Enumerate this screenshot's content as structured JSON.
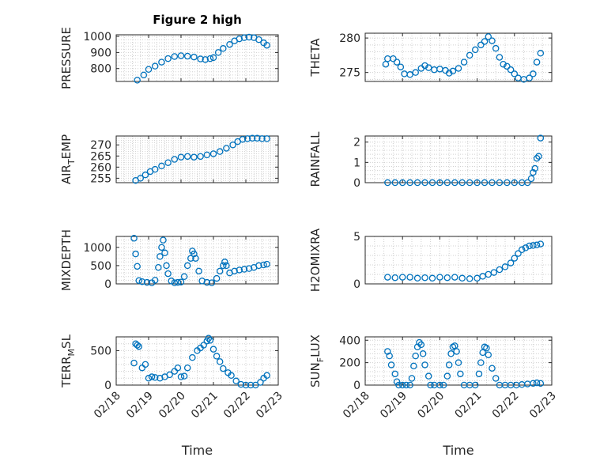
{
  "figure": {
    "title": "Figure 2 high",
    "marker_color": "#0072bd",
    "grid_color": "#d0d0d0"
  },
  "chart_data": [
    {
      "id": "pressure",
      "type": "scatter",
      "title": "Figure 2 high",
      "ylabel": "PRESSURE",
      "ylabel_sub": null,
      "xlim": [
        0,
        5
      ],
      "ylim": [
        720,
        1010
      ],
      "yticks": [
        800,
        900,
        1000
      ],
      "grid": true,
      "minor_grid": true,
      "show_x_ticklabels": false,
      "xlabel": "",
      "xticks": [],
      "xticklabels": [],
      "points": [
        [
          0.65,
          728
        ],
        [
          0.85,
          760
        ],
        [
          1,
          795
        ],
        [
          1.2,
          815
        ],
        [
          1.4,
          840
        ],
        [
          1.6,
          862
        ],
        [
          1.8,
          875
        ],
        [
          2,
          880
        ],
        [
          2.2,
          877
        ],
        [
          2.4,
          872
        ],
        [
          2.6,
          860
        ],
        [
          2.75,
          856
        ],
        [
          2.9,
          862
        ],
        [
          3,
          868
        ],
        [
          3.15,
          900
        ],
        [
          3.3,
          925
        ],
        [
          3.5,
          950
        ],
        [
          3.65,
          972
        ],
        [
          3.8,
          985
        ],
        [
          3.95,
          992
        ],
        [
          4.1,
          995
        ],
        [
          4.25,
          992
        ],
        [
          4.4,
          980
        ],
        [
          4.55,
          960
        ],
        [
          4.65,
          945
        ]
      ]
    },
    {
      "id": "theta",
      "type": "scatter",
      "ylabel": "THETA",
      "ylabel_sub": null,
      "xlim": [
        0,
        5
      ],
      "ylim": [
        273.7,
        280.7
      ],
      "yticks": [
        275,
        280
      ],
      "grid": true,
      "minor_grid": true,
      "show_x_ticklabels": false,
      "xlabel": "",
      "xticks": [],
      "xticklabels": [],
      "points": [
        [
          0.55,
          276.2
        ],
        [
          0.6,
          277
        ],
        [
          0.75,
          277
        ],
        [
          0.85,
          276.5
        ],
        [
          0.95,
          275.8
        ],
        [
          1.05,
          274.8
        ],
        [
          1.2,
          274.7
        ],
        [
          1.35,
          275
        ],
        [
          1.5,
          275.6
        ],
        [
          1.6,
          276
        ],
        [
          1.7,
          275.7
        ],
        [
          1.85,
          275.4
        ],
        [
          2,
          275.5
        ],
        [
          2.15,
          275.3
        ],
        [
          2.25,
          274.9
        ],
        [
          2.35,
          275.2
        ],
        [
          2.5,
          275.6
        ],
        [
          2.65,
          276.5
        ],
        [
          2.8,
          277.5
        ],
        [
          2.95,
          278.3
        ],
        [
          3.1,
          279
        ],
        [
          3.2,
          279.5
        ],
        [
          3.3,
          280.2
        ],
        [
          3.4,
          279.6
        ],
        [
          3.5,
          278.5
        ],
        [
          3.6,
          277.2
        ],
        [
          3.7,
          276.2
        ],
        [
          3.8,
          275.9
        ],
        [
          3.9,
          275.4
        ],
        [
          4,
          274.8
        ],
        [
          4.1,
          274.2
        ],
        [
          4.25,
          274
        ],
        [
          4.4,
          274.2
        ],
        [
          4.5,
          274.8
        ],
        [
          4.6,
          276.5
        ],
        [
          4.7,
          277.8
        ]
      ]
    },
    {
      "id": "air_temp",
      "type": "scatter",
      "ylabel": "AIR",
      "ylabel_sub": "T",
      "ylabel_tail": "EMP",
      "xlim": [
        0,
        5
      ],
      "ylim": [
        253,
        274
      ],
      "yticks": [
        255,
        260,
        265,
        270
      ],
      "grid": true,
      "minor_grid": true,
      "show_x_ticklabels": false,
      "xlabel": "",
      "xticks": [],
      "xticklabels": [],
      "points": [
        [
          0.6,
          254
        ],
        [
          0.75,
          255
        ],
        [
          0.9,
          256.5
        ],
        [
          1.05,
          258
        ],
        [
          1.2,
          259
        ],
        [
          1.4,
          260.5
        ],
        [
          1.6,
          262
        ],
        [
          1.8,
          263.5
        ],
        [
          2,
          264.5
        ],
        [
          2.2,
          264.8
        ],
        [
          2.4,
          264.5
        ],
        [
          2.6,
          264.8
        ],
        [
          2.8,
          265.5
        ],
        [
          3,
          266
        ],
        [
          3.2,
          267
        ],
        [
          3.4,
          268.5
        ],
        [
          3.6,
          270
        ],
        [
          3.75,
          271.5
        ],
        [
          3.9,
          272.5
        ],
        [
          4.05,
          272.8
        ],
        [
          4.2,
          273
        ],
        [
          4.35,
          273
        ],
        [
          4.5,
          272.8
        ],
        [
          4.65,
          272.8
        ]
      ]
    },
    {
      "id": "rainfall",
      "type": "scatter",
      "ylabel": "RAINFALL",
      "ylabel_sub": null,
      "xlim": [
        0,
        5
      ],
      "ylim": [
        0,
        2.3
      ],
      "yticks": [
        0,
        1,
        2
      ],
      "grid": true,
      "minor_grid": true,
      "show_x_ticklabels": false,
      "xlabel": "",
      "xticks": [],
      "xticklabels": [],
      "points": [
        [
          0.6,
          0
        ],
        [
          0.8,
          0
        ],
        [
          1,
          0
        ],
        [
          1.2,
          0
        ],
        [
          1.4,
          0
        ],
        [
          1.6,
          0
        ],
        [
          1.8,
          0
        ],
        [
          2,
          0
        ],
        [
          2.2,
          0
        ],
        [
          2.4,
          0
        ],
        [
          2.6,
          0
        ],
        [
          2.8,
          0
        ],
        [
          3,
          0
        ],
        [
          3.2,
          0
        ],
        [
          3.4,
          0
        ],
        [
          3.6,
          0
        ],
        [
          3.8,
          0
        ],
        [
          4,
          0
        ],
        [
          4.2,
          0
        ],
        [
          4.35,
          0
        ],
        [
          4.45,
          0.2
        ],
        [
          4.5,
          0.5
        ],
        [
          4.55,
          0.7
        ],
        [
          4.6,
          1.2
        ],
        [
          4.65,
          1.3
        ],
        [
          4.7,
          2.2
        ]
      ]
    },
    {
      "id": "mixdepth",
      "type": "scatter",
      "ylabel": "MIXDEPTH",
      "ylabel_sub": null,
      "xlim": [
        0,
        5
      ],
      "ylim": [
        0,
        1300
      ],
      "yticks": [
        0,
        500,
        1000
      ],
      "grid": true,
      "minor_grid": true,
      "show_x_ticklabels": false,
      "xlabel": "",
      "xticks": [],
      "xticklabels": [],
      "points": [
        [
          0.55,
          1250
        ],
        [
          0.6,
          820
        ],
        [
          0.65,
          480
        ],
        [
          0.7,
          90
        ],
        [
          0.8,
          60
        ],
        [
          0.95,
          40
        ],
        [
          1.1,
          30
        ],
        [
          1.2,
          100
        ],
        [
          1.3,
          450
        ],
        [
          1.35,
          750
        ],
        [
          1.4,
          1000
        ],
        [
          1.45,
          1200
        ],
        [
          1.5,
          850
        ],
        [
          1.55,
          500
        ],
        [
          1.6,
          280
        ],
        [
          1.7,
          80
        ],
        [
          1.8,
          30
        ],
        [
          1.9,
          40
        ],
        [
          2,
          50
        ],
        [
          2.1,
          200
        ],
        [
          2.2,
          500
        ],
        [
          2.3,
          700
        ],
        [
          2.35,
          900
        ],
        [
          2.4,
          820
        ],
        [
          2.45,
          700
        ],
        [
          2.55,
          350
        ],
        [
          2.65,
          80
        ],
        [
          2.8,
          40
        ],
        [
          2.95,
          30
        ],
        [
          3.1,
          150
        ],
        [
          3.2,
          350
        ],
        [
          3.3,
          500
        ],
        [
          3.35,
          600
        ],
        [
          3.4,
          500
        ],
        [
          3.5,
          300
        ],
        [
          3.65,
          350
        ],
        [
          3.8,
          380
        ],
        [
          3.95,
          400
        ],
        [
          4.1,
          420
        ],
        [
          4.25,
          450
        ],
        [
          4.4,
          500
        ],
        [
          4.55,
          520
        ],
        [
          4.65,
          540
        ]
      ]
    },
    {
      "id": "h2omixra",
      "type": "scatter",
      "ylabel": "H2OMIXRA",
      "ylabel_sub": null,
      "xlim": [
        0,
        5
      ],
      "ylim": [
        0,
        5
      ],
      "yticks": [
        0,
        5
      ],
      "grid": true,
      "minor_grid": true,
      "show_x_ticklabels": false,
      "xlabel": "",
      "xticks": [],
      "xticklabels": [],
      "points": [
        [
          0.6,
          0.7
        ],
        [
          0.8,
          0.65
        ],
        [
          1,
          0.7
        ],
        [
          1.2,
          0.7
        ],
        [
          1.4,
          0.6
        ],
        [
          1.6,
          0.65
        ],
        [
          1.8,
          0.6
        ],
        [
          2,
          0.7
        ],
        [
          2.2,
          0.65
        ],
        [
          2.4,
          0.7
        ],
        [
          2.6,
          0.6
        ],
        [
          2.8,
          0.55
        ],
        [
          3,
          0.6
        ],
        [
          3.15,
          0.8
        ],
        [
          3.3,
          1
        ],
        [
          3.45,
          1.2
        ],
        [
          3.6,
          1.5
        ],
        [
          3.75,
          1.8
        ],
        [
          3.9,
          2.2
        ],
        [
          4,
          2.7
        ],
        [
          4.1,
          3.2
        ],
        [
          4.2,
          3.6
        ],
        [
          4.3,
          3.8
        ],
        [
          4.4,
          4
        ],
        [
          4.5,
          4.05
        ],
        [
          4.6,
          4.1
        ],
        [
          4.7,
          4.2
        ]
      ]
    },
    {
      "id": "terr_msl",
      "type": "scatter",
      "ylabel": "TERR",
      "ylabel_sub": "M",
      "ylabel_tail": "SL",
      "xlim": [
        0,
        5
      ],
      "ylim": [
        0,
        700
      ],
      "yticks": [
        0,
        500
      ],
      "grid": true,
      "minor_grid": true,
      "show_x_ticklabels": true,
      "xlabel": "Time",
      "xticks": [
        0,
        1,
        2,
        3,
        4,
        5
      ],
      "xticklabels": [
        "02/18",
        "02/19",
        "02/20",
        "02/21",
        "02/22",
        "02/23"
      ],
      "points": [
        [
          0.55,
          320
        ],
        [
          0.6,
          600
        ],
        [
          0.65,
          580
        ],
        [
          0.7,
          560
        ],
        [
          0.8,
          250
        ],
        [
          0.9,
          300
        ],
        [
          1,
          100
        ],
        [
          1.1,
          120
        ],
        [
          1.2,
          110
        ],
        [
          1.35,
          100
        ],
        [
          1.5,
          120
        ],
        [
          1.65,
          150
        ],
        [
          1.8,
          200
        ],
        [
          1.9,
          250
        ],
        [
          2,
          120
        ],
        [
          2.1,
          130
        ],
        [
          2.2,
          250
        ],
        [
          2.35,
          400
        ],
        [
          2.5,
          500
        ],
        [
          2.6,
          540
        ],
        [
          2.7,
          580
        ],
        [
          2.8,
          640
        ],
        [
          2.85,
          680
        ],
        [
          2.9,
          650
        ],
        [
          3,
          520
        ],
        [
          3.1,
          420
        ],
        [
          3.2,
          340
        ],
        [
          3.3,
          240
        ],
        [
          3.45,
          180
        ],
        [
          3.55,
          140
        ],
        [
          3.7,
          60
        ],
        [
          3.85,
          10
        ],
        [
          4,
          0
        ],
        [
          4.15,
          0
        ],
        [
          4.3,
          0
        ],
        [
          4.45,
          40
        ],
        [
          4.55,
          100
        ],
        [
          4.65,
          140
        ]
      ]
    },
    {
      "id": "sun_flux",
      "type": "scatter",
      "ylabel": "SUN",
      "ylabel_sub": "F",
      "ylabel_tail": "LUX",
      "xlim": [
        0,
        5
      ],
      "ylim": [
        0,
        430
      ],
      "yticks": [
        0,
        200,
        400
      ],
      "grid": true,
      "minor_grid": true,
      "show_x_ticklabels": true,
      "xlabel": "Time",
      "xticks": [
        0,
        1,
        2,
        3,
        4,
        5
      ],
      "xticklabels": [
        "02/18",
        "02/19",
        "02/20",
        "02/21",
        "02/22",
        "02/23"
      ],
      "points": [
        [
          0.6,
          300
        ],
        [
          0.65,
          260
        ],
        [
          0.7,
          180
        ],
        [
          0.8,
          100
        ],
        [
          0.85,
          30
        ],
        [
          0.9,
          0
        ],
        [
          1,
          0
        ],
        [
          1.1,
          0
        ],
        [
          1.2,
          0
        ],
        [
          1.25,
          60
        ],
        [
          1.3,
          170
        ],
        [
          1.35,
          260
        ],
        [
          1.4,
          340
        ],
        [
          1.45,
          380
        ],
        [
          1.5,
          360
        ],
        [
          1.55,
          280
        ],
        [
          1.6,
          180
        ],
        [
          1.7,
          80
        ],
        [
          1.75,
          0
        ],
        [
          1.85,
          0
        ],
        [
          2,
          0
        ],
        [
          2.1,
          0
        ],
        [
          2.2,
          80
        ],
        [
          2.25,
          180
        ],
        [
          2.3,
          280
        ],
        [
          2.35,
          340
        ],
        [
          2.4,
          350
        ],
        [
          2.45,
          300
        ],
        [
          2.5,
          200
        ],
        [
          2.55,
          100
        ],
        [
          2.65,
          0
        ],
        [
          2.8,
          0
        ],
        [
          2.95,
          0
        ],
        [
          3.05,
          100
        ],
        [
          3.1,
          200
        ],
        [
          3.15,
          290
        ],
        [
          3.2,
          340
        ],
        [
          3.25,
          330
        ],
        [
          3.3,
          270
        ],
        [
          3.4,
          150
        ],
        [
          3.5,
          60
        ],
        [
          3.6,
          0
        ],
        [
          3.75,
          0
        ],
        [
          3.9,
          0
        ],
        [
          4.05,
          0
        ],
        [
          4.2,
          5
        ],
        [
          4.35,
          10
        ],
        [
          4.5,
          15
        ],
        [
          4.6,
          20
        ],
        [
          4.7,
          15
        ]
      ]
    }
  ]
}
